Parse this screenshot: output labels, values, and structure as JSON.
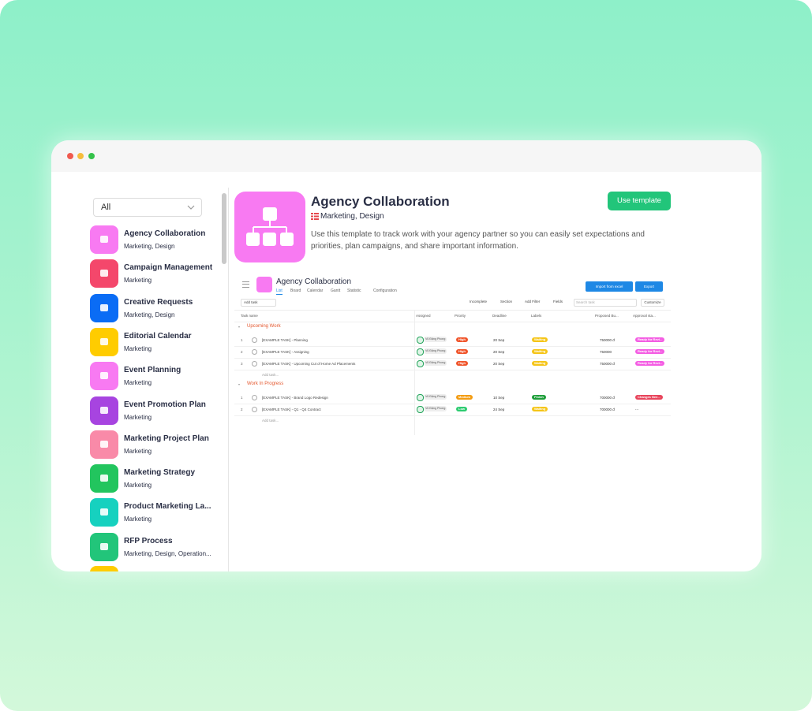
{
  "sidebar": {
    "filter": "All",
    "items": [
      {
        "title": "Agency Collaboration",
        "tags": "Marketing, Design"
      },
      {
        "title": "Campaign Management",
        "tags": "Marketing"
      },
      {
        "title": "Creative Requests",
        "tags": "Marketing, Design"
      },
      {
        "title": "Editorial Calendar",
        "tags": "Marketing"
      },
      {
        "title": "Event Planning",
        "tags": "Marketing"
      },
      {
        "title": "Event Promotion Plan",
        "tags": "Marketing"
      },
      {
        "title": "Marketing Project Plan",
        "tags": "Marketing"
      },
      {
        "title": "Marketing Strategy",
        "tags": "Marketing"
      },
      {
        "title": "Product Marketing La...",
        "tags": "Marketing"
      },
      {
        "title": "RFP Process",
        "tags": "Marketing, Design, Operation..."
      }
    ]
  },
  "template": {
    "title": "Agency Collaboration",
    "tags": "Marketing, Design",
    "description": "Use this template to track work with your agency partner so you can easily set expectations and priorities, plan campaigns, and share important information.",
    "button": "Use template"
  },
  "preview": {
    "title": "Agency Collaboration",
    "tabs": [
      "List",
      "Board",
      "Calendar",
      "Gantt",
      "Statistic",
      "Configuration"
    ],
    "import": "Import from excel",
    "export": "Export",
    "add_task": "Add task",
    "tools": [
      "Incomplete",
      "Section",
      "Add Filter",
      "Fields"
    ],
    "search": "Search task",
    "customize": "Customize",
    "columns": [
      "Task name",
      "Assigned",
      "Priority",
      "Deadline",
      "Labels",
      "Proposed Bu...",
      "Approval sta..."
    ],
    "sections": [
      {
        "name": "Upcoming Work",
        "add": "Add task...",
        "rows": [
          {
            "num": "1",
            "task": "[EXAMPLE TASK] - Planning",
            "assignee": "Vũ Đặng Phong",
            "priority": "High",
            "deadline": "20 Sep",
            "label": "Waiting",
            "budget": "750000 đ",
            "approval": "Ready for Revi..."
          },
          {
            "num": "2",
            "task": "[EXAMPLE TASK] - Assigning",
            "assignee": "Vũ Đặng Phong",
            "priority": "High",
            "deadline": "20 Sep",
            "label": "Waiting",
            "budget": "750000",
            "approval": "Ready for Revi..."
          },
          {
            "num": "3",
            "task": "[EXAMPLE TASK] - Upcoming Cut of Home Ad Placements",
            "assignee": "Vũ Đặng Phong",
            "priority": "High",
            "deadline": "20 Sep",
            "label": "Waiting",
            "budget": "750000 đ",
            "approval": "Ready for Revi..."
          }
        ]
      },
      {
        "name": "Work In Progress",
        "add": "Add task...",
        "rows": [
          {
            "num": "1",
            "task": "[EXAMPLE TASK] - Brand Logo Redesign",
            "assignee": "Vũ Đặng Phong",
            "priority": "Medium",
            "deadline": "10 Sep",
            "label": "Finish",
            "budget": "700000 đ",
            "approval": "Changes Nee..."
          },
          {
            "num": "2",
            "task": "[EXAMPLE TASK] - Q1 - Q4 Contract",
            "assignee": "Vũ Đặng Phong",
            "priority": "Low",
            "deadline": "24 Sep",
            "label": "Waiting",
            "budget": "700000 đ",
            "approval": "..."
          }
        ]
      }
    ]
  }
}
